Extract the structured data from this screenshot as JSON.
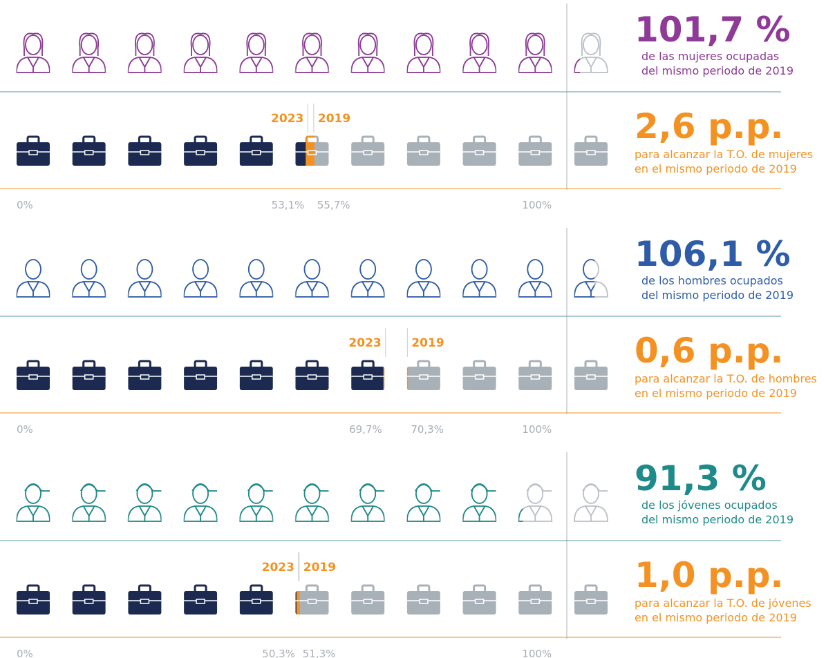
{
  "sections": [
    {
      "color": "#8e3a96",
      "people_stat": "101,7 %",
      "people_text": [
        "de las mujeres ocupadas",
        "del mismo periodo de 2019"
      ],
      "rate_stat": "2,6 p.p.",
      "rate_text": [
        "para alcanzar la T.O. de mujeres",
        "en el mismo periodo de 2019"
      ],
      "year_current": "2023",
      "year_base": "2019",
      "axis": [
        "0%",
        "53,1%",
        "55,7%",
        "100%"
      ]
    },
    {
      "color": "#2e5ca8",
      "people_stat": "106,1 %",
      "people_text": [
        "de los hombres ocupados",
        "del mismo periodo de 2019"
      ],
      "rate_stat": "0,6 p.p.",
      "rate_text": [
        "para alcanzar la T.O. de hombres",
        "en el mismo periodo de 2019"
      ],
      "year_current": "2023",
      "year_base": "2019",
      "axis": [
        "0%",
        "69,7%",
        "70,3%",
        "100%"
      ]
    },
    {
      "color": "#1f8a8a",
      "people_stat": "91,3 %",
      "people_text": [
        "de los jóvenes ocupados",
        "del mismo periodo de 2019"
      ],
      "rate_stat": "1,0 p.p.",
      "rate_text": [
        "para alcanzar la T.O. de jóvenes",
        "en el mismo periodo de 2019"
      ],
      "year_current": "2023",
      "year_base": "2019",
      "axis": [
        "0%",
        "50,3%",
        "51,3%",
        "100%"
      ]
    }
  ]
}
